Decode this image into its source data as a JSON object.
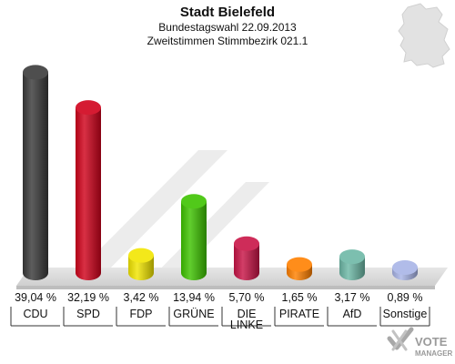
{
  "chart_data": {
    "type": "bar",
    "title": "Stadt Bielefeld",
    "subtitle_lines": [
      "Bundestagswahl 22.09.2013",
      "Zweitstimmen Stimmbezirk 021.1"
    ],
    "unit": "%",
    "categories": [
      "CDU",
      "SPD",
      "FDP",
      "GRÜNE",
      "DIE LINKE",
      "PIRATE",
      "AfD",
      "Sonstige"
    ],
    "category_lines": [
      [
        "CDU"
      ],
      [
        "SPD"
      ],
      [
        "FDP"
      ],
      [
        "GRÜNE"
      ],
      [
        "DIE",
        "LINKE"
      ],
      [
        "PIRATE"
      ],
      [
        "AfD"
      ],
      [
        "Sonstige"
      ]
    ],
    "values": [
      39.04,
      32.19,
      3.42,
      13.94,
      5.7,
      1.65,
      3.17,
      0.89
    ],
    "value_labels": [
      "39,04 %",
      "32,19 %",
      "3,42 %",
      "13,94 %",
      "5,70 %",
      "1,65 %",
      "3,17 %",
      "0,89 %"
    ],
    "colors": [
      "#3a3a3a",
      "#d0021b",
      "#f2e500",
      "#3ec300",
      "#c81446",
      "#ff8000",
      "#6db8a6",
      "#a8b4e6"
    ],
    "ylim": [
      0,
      40
    ],
    "grid": false,
    "legend": "none"
  },
  "logo": {
    "line1": "VOTE",
    "line2": "MANAGER",
    "mark_icon": "checkmark-x-icon"
  },
  "map_icon": "germany-map-icon"
}
